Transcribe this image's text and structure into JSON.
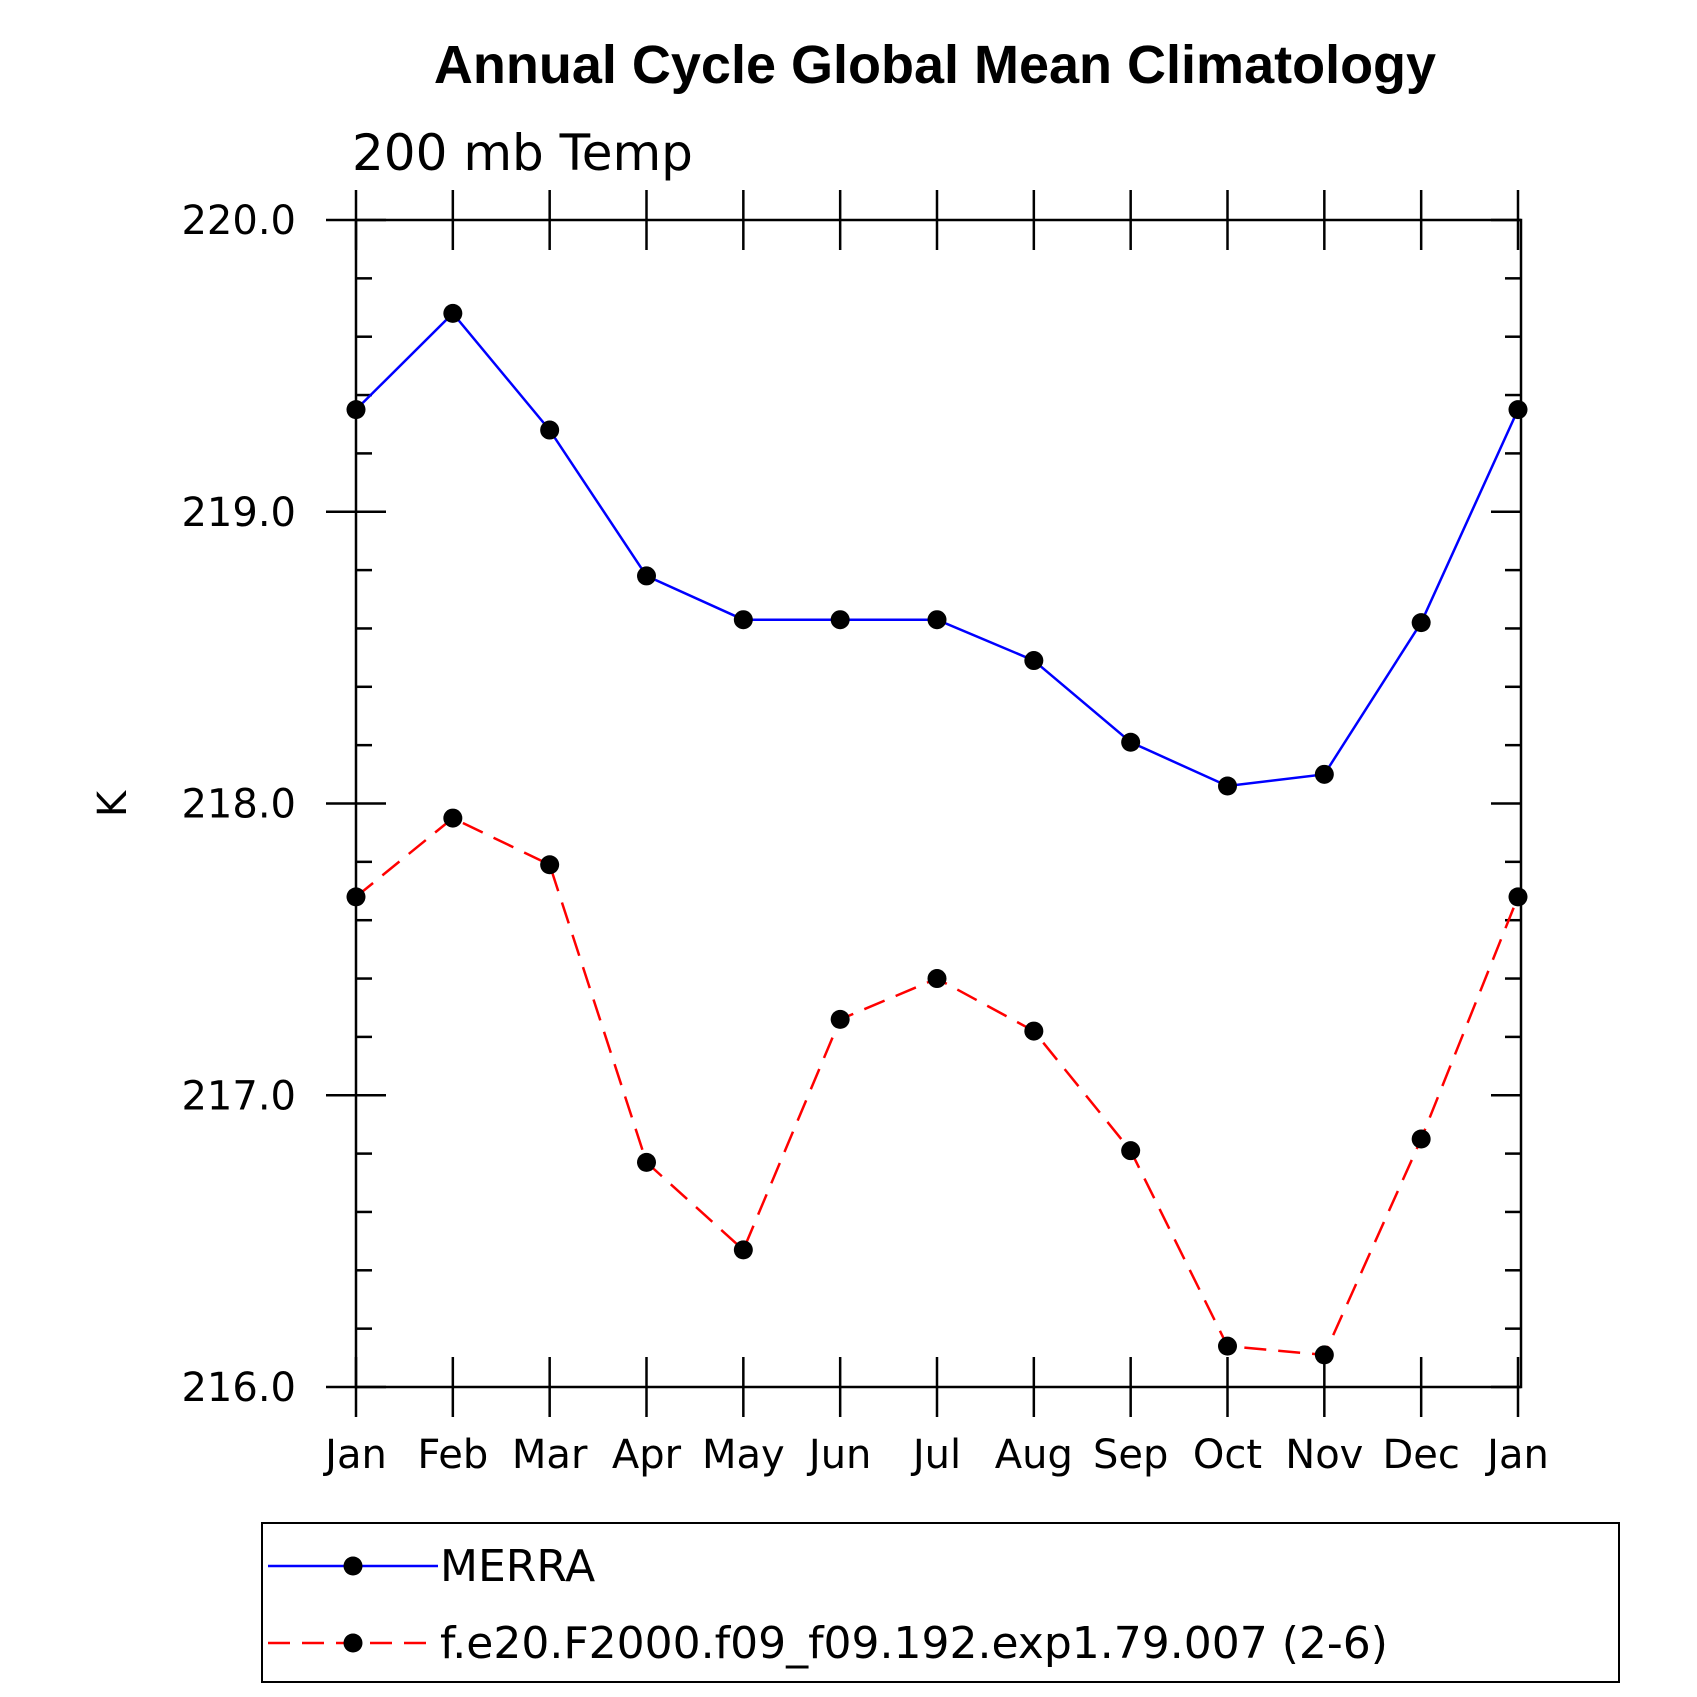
{
  "chart_data": {
    "type": "line",
    "title": "Annual Cycle Global Mean Climatology",
    "subtitle": "200 mb Temp",
    "xlabel": "",
    "ylabel": "K",
    "categories": [
      "Jan",
      "Feb",
      "Mar",
      "Apr",
      "May",
      "Jun",
      "Jul",
      "Aug",
      "Sep",
      "Oct",
      "Nov",
      "Dec",
      "Jan"
    ],
    "ylim": [
      216.0,
      220.0
    ],
    "y_ticks": [
      "216.0",
      "217.0",
      "218.0",
      "219.0",
      "220.0"
    ],
    "y_minor_step": 0.2,
    "grid": false,
    "legend_position": "bottom",
    "series": [
      {
        "name": "MERRA",
        "color": "#0000ff",
        "dash": "solid",
        "marker": "filled-circle",
        "values": [
          219.35,
          219.68,
          219.28,
          218.78,
          218.63,
          218.63,
          218.63,
          218.49,
          218.21,
          218.06,
          218.1,
          218.62,
          219.35
        ]
      },
      {
        "name": "f.e20.F2000.f09_f09.192.exp1.79.007 (2-6)",
        "color": "#ff0000",
        "dash": "dashed",
        "marker": "filled-circle",
        "values": [
          217.68,
          217.95,
          217.79,
          216.77,
          216.47,
          217.26,
          217.4,
          217.22,
          216.81,
          216.14,
          216.11,
          216.85,
          217.68
        ]
      }
    ]
  }
}
